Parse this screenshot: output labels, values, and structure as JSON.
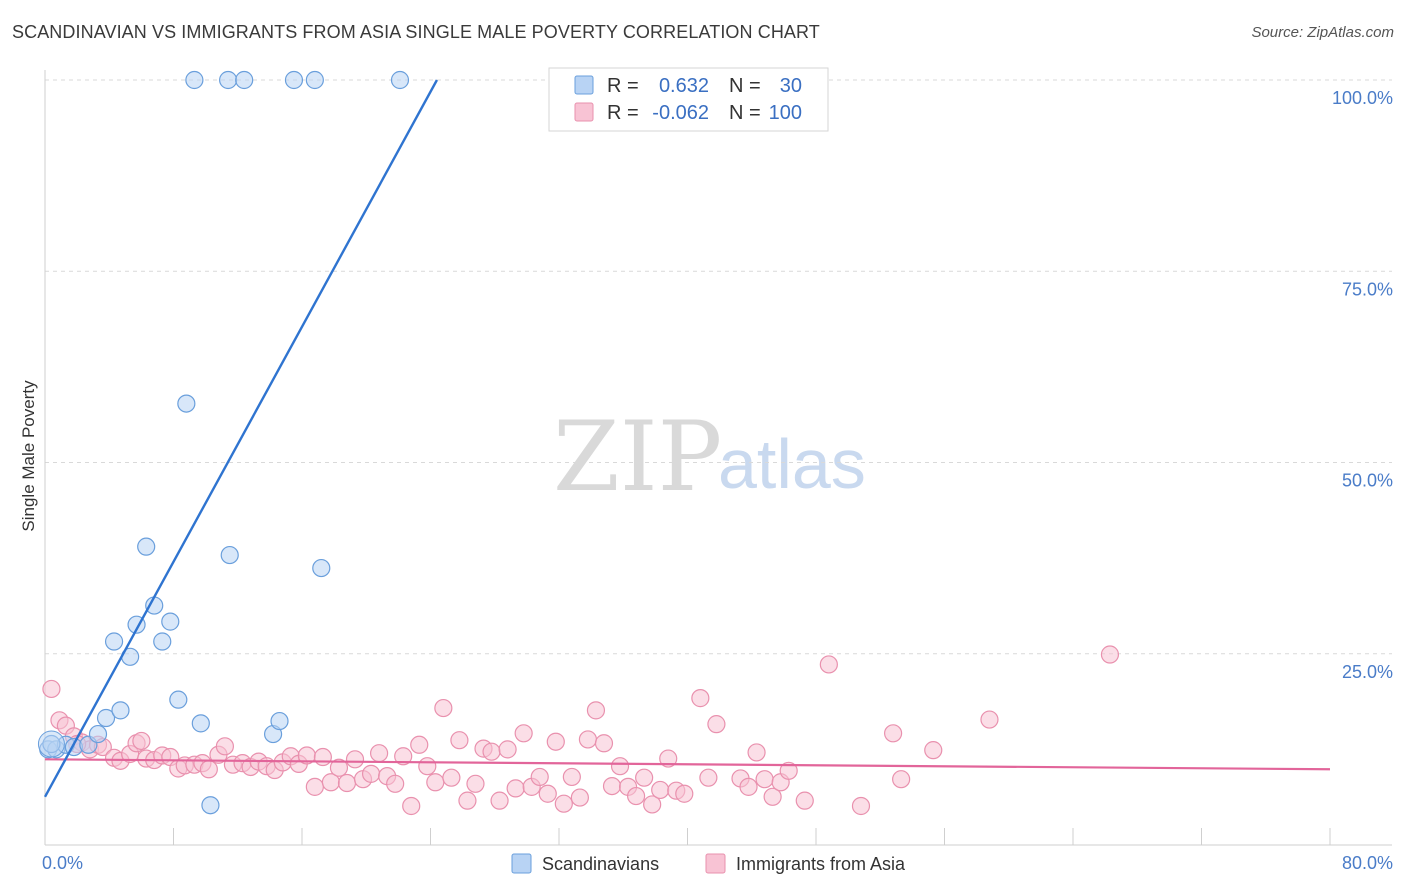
{
  "header": {
    "title": "SCANDINAVIAN VS IMMIGRANTS FROM ASIA SINGLE MALE POVERTY CORRELATION CHART",
    "source": "Source: ZipAtlas.com"
  },
  "watermark": {
    "zip": "ZIP",
    "atlas": "atlas"
  },
  "colors": {
    "blue_fill": "#b8d3f4",
    "blue_stroke": "#6a9fdc",
    "blue_line": "#2f74d0",
    "pink_fill": "#f8c3d4",
    "pink_stroke": "#e991ae",
    "pink_line": "#e2659a",
    "grid": "#d9d9d9",
    "axis_text": "#4a7cc8"
  },
  "legend_box": {
    "r_label": "R =",
    "n_label": "N =",
    "rows": [
      {
        "series": "Scandinavians",
        "r": "0.632",
        "n": "30"
      },
      {
        "series": "Immigrants from Asia",
        "r": "-0.062",
        "n": "100"
      }
    ]
  },
  "chart_data": {
    "type": "scatter",
    "title": "SCANDINAVIAN VS IMMIGRANTS FROM ASIA SINGLE MALE POVERTY CORRELATION CHART",
    "xlabel": "",
    "ylabel": "Single Male Poverty",
    "xlim": [
      0,
      80
    ],
    "ylim": [
      0,
      100
    ],
    "x_tick_labels": [
      "0.0%",
      "80.0%"
    ],
    "y_tick_values": [
      25,
      50,
      75,
      100
    ],
    "y_tick_labels": [
      "25.0%",
      "50.0%",
      "75.0%",
      "100.0%"
    ],
    "grid": true,
    "legend": [
      "Scandinavians",
      "Immigrants from Asia"
    ],
    "series": [
      {
        "name": "Scandinavians",
        "r": 0.632,
        "n": 30,
        "trend": {
          "x0": 0.0,
          "y0": 6.3,
          "x1": 24.4,
          "y1": 100
        },
        "points": [
          [
            0.2,
            12.5
          ],
          [
            0.7,
            12.5
          ],
          [
            1.3,
            13.1
          ],
          [
            1.8,
            12.8
          ],
          [
            2.7,
            13.1
          ],
          [
            3.3,
            14.5
          ],
          [
            3.8,
            16.6
          ],
          [
            4.3,
            26.6
          ],
          [
            4.7,
            17.6
          ],
          [
            5.3,
            24.6
          ],
          [
            5.7,
            28.8
          ],
          [
            6.3,
            39.0
          ],
          [
            6.8,
            31.3
          ],
          [
            7.3,
            26.6
          ],
          [
            7.8,
            29.2
          ],
          [
            8.3,
            19.0
          ],
          [
            8.8,
            57.7
          ],
          [
            9.7,
            15.9
          ],
          [
            10.3,
            5.2
          ],
          [
            11.5,
            37.9
          ],
          [
            14.2,
            14.5
          ],
          [
            14.6,
            16.2
          ],
          [
            17.2,
            36.2
          ],
          [
            9.3,
            100
          ],
          [
            11.4,
            100
          ],
          [
            12.4,
            100
          ],
          [
            15.5,
            100
          ],
          [
            16.8,
            100
          ],
          [
            22.1,
            100
          ],
          [
            0.4,
            13.2
          ]
        ]
      },
      {
        "name": "Immigrants from Asia",
        "r": -0.062,
        "n": 100,
        "trend": {
          "x0": 0.0,
          "y0": 11.2,
          "x1": 80.0,
          "y1": 9.9
        },
        "points": [
          [
            0.4,
            20.4
          ],
          [
            0.9,
            16.3
          ],
          [
            1.3,
            15.6
          ],
          [
            1.8,
            14.2
          ],
          [
            2.3,
            13.4
          ],
          [
            2.8,
            12.5
          ],
          [
            3.3,
            13.1
          ],
          [
            3.6,
            12.8
          ],
          [
            4.3,
            11.4
          ],
          [
            4.7,
            11.0
          ],
          [
            5.3,
            11.9
          ],
          [
            5.7,
            13.3
          ],
          [
            6.3,
            11.3
          ],
          [
            6.8,
            11.1
          ],
          [
            7.3,
            11.7
          ],
          [
            7.8,
            11.5
          ],
          [
            8.3,
            10.0
          ],
          [
            8.7,
            10.4
          ],
          [
            9.3,
            10.5
          ],
          [
            9.8,
            10.7
          ],
          [
            10.2,
            9.9
          ],
          [
            10.8,
            11.8
          ],
          [
            11.2,
            12.9
          ],
          [
            11.7,
            10.5
          ],
          [
            12.3,
            10.7
          ],
          [
            12.8,
            10.2
          ],
          [
            13.3,
            10.9
          ],
          [
            13.8,
            10.3
          ],
          [
            14.3,
            9.8
          ],
          [
            14.8,
            10.8
          ],
          [
            15.3,
            11.6
          ],
          [
            15.8,
            10.6
          ],
          [
            16.3,
            11.7
          ],
          [
            16.8,
            7.6
          ],
          [
            17.3,
            11.5
          ],
          [
            17.8,
            8.2
          ],
          [
            18.3,
            10.1
          ],
          [
            18.8,
            8.1
          ],
          [
            19.3,
            11.2
          ],
          [
            19.8,
            8.6
          ],
          [
            20.3,
            9.3
          ],
          [
            20.8,
            12.0
          ],
          [
            21.3,
            9.0
          ],
          [
            21.8,
            8.0
          ],
          [
            22.3,
            11.6
          ],
          [
            22.8,
            5.1
          ],
          [
            23.3,
            13.1
          ],
          [
            23.8,
            10.3
          ],
          [
            24.3,
            8.2
          ],
          [
            24.8,
            17.9
          ],
          [
            25.3,
            8.8
          ],
          [
            25.8,
            13.7
          ],
          [
            26.3,
            5.8
          ],
          [
            26.8,
            8.0
          ],
          [
            27.3,
            12.6
          ],
          [
            27.8,
            12.2
          ],
          [
            28.3,
            5.8
          ],
          [
            28.8,
            12.5
          ],
          [
            29.3,
            7.4
          ],
          [
            29.8,
            14.6
          ],
          [
            30.3,
            7.6
          ],
          [
            30.8,
            8.9
          ],
          [
            31.3,
            6.7
          ],
          [
            31.8,
            13.5
          ],
          [
            32.3,
            5.4
          ],
          [
            32.8,
            8.9
          ],
          [
            33.3,
            6.2
          ],
          [
            33.8,
            13.8
          ],
          [
            34.3,
            17.6
          ],
          [
            34.8,
            13.3
          ],
          [
            35.3,
            7.7
          ],
          [
            35.8,
            10.3
          ],
          [
            36.3,
            7.6
          ],
          [
            36.8,
            6.4
          ],
          [
            37.3,
            8.8
          ],
          [
            37.8,
            5.3
          ],
          [
            38.3,
            7.2
          ],
          [
            38.8,
            11.3
          ],
          [
            39.3,
            7.1
          ],
          [
            39.8,
            6.7
          ],
          [
            40.8,
            19.2
          ],
          [
            41.3,
            8.8
          ],
          [
            41.8,
            15.8
          ],
          [
            43.3,
            8.7
          ],
          [
            43.8,
            7.6
          ],
          [
            44.3,
            12.1
          ],
          [
            44.8,
            8.6
          ],
          [
            45.3,
            6.3
          ],
          [
            45.8,
            8.2
          ],
          [
            46.3,
            9.7
          ],
          [
            47.3,
            5.8
          ],
          [
            48.8,
            23.6
          ],
          [
            50.8,
            5.1
          ],
          [
            52.8,
            14.6
          ],
          [
            53.3,
            8.6
          ],
          [
            55.3,
            12.4
          ],
          [
            58.8,
            16.4
          ],
          [
            66.3,
            24.9
          ],
          [
            6.0,
            13.6
          ],
          [
            2.0,
            13.2
          ]
        ]
      }
    ]
  },
  "bottom_legend": [
    {
      "label": "Scandinavians"
    },
    {
      "label": "Immigrants from Asia"
    }
  ]
}
